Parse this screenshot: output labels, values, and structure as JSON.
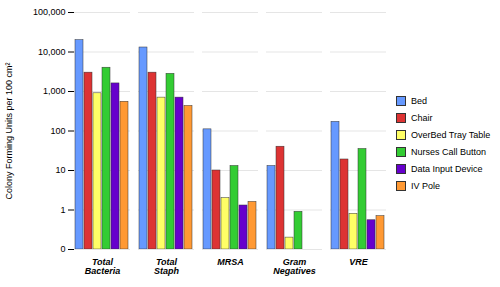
{
  "chart_data": {
    "type": "bar",
    "y_label": "Colony Forming Units per 100 cm²",
    "categories": [
      "Total Bacteria",
      "Total Staph",
      "MRSA",
      "Gram Negatives",
      "VRE"
    ],
    "series": [
      {
        "name": "Bed",
        "color": "#6699ff",
        "values": [
          20000,
          13000,
          110,
          13,
          170
        ]
      },
      {
        "name": "Chair",
        "color": "#dd3333",
        "values": [
          3000,
          3000,
          10,
          40,
          19
        ]
      },
      {
        "name": "OverBed Tray Table",
        "color": "#ffff66",
        "values": [
          900,
          700,
          2,
          0.2,
          0.8
        ]
      },
      {
        "name": "Nurses Call Button",
        "color": "#33cc33",
        "values": [
          4000,
          2800,
          13,
          0.9,
          35
        ]
      },
      {
        "name": "Data Input Device",
        "color": "#6600cc",
        "values": [
          1600,
          700,
          1.3,
          null,
          0.55
        ]
      },
      {
        "name": "IV Pole",
        "color": "#ff9933",
        "values": [
          550,
          430,
          1.6,
          null,
          0.7
        ]
      }
    ],
    "ylim": [
      0.1,
      100000
    ],
    "yticks": [
      {
        "value": 0.1,
        "label": "0"
      },
      1,
      10,
      100,
      {
        "value": 1000,
        "label": "1,000"
      },
      {
        "value": 10000,
        "label": "10,000"
      },
      {
        "value": 100000,
        "label": "100,000"
      }
    ],
    "log": "y",
    "grid": true,
    "legend": "right"
  }
}
